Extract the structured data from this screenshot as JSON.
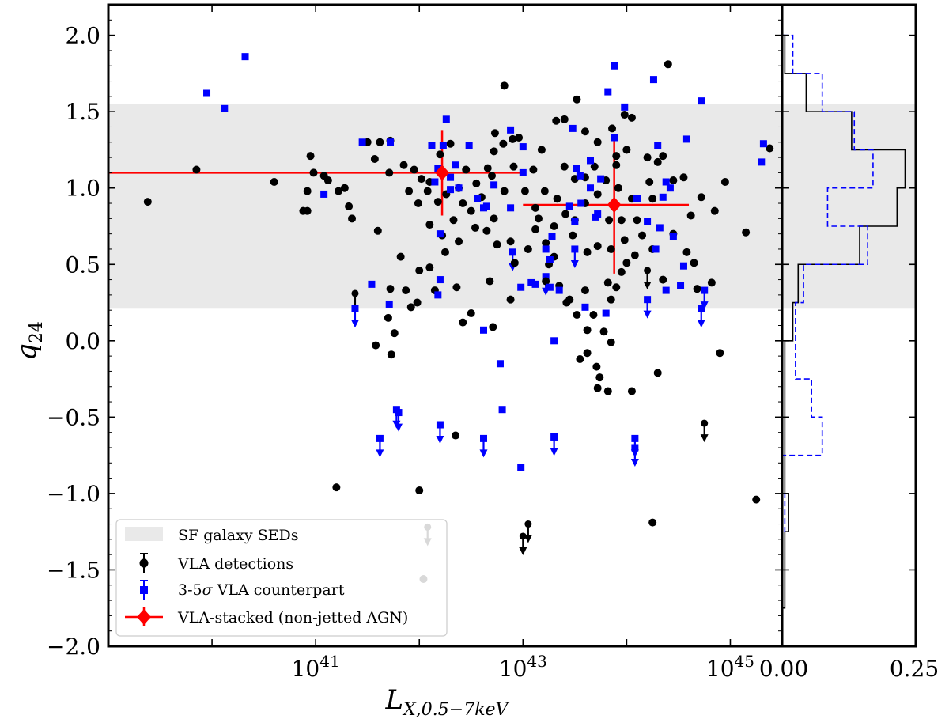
{
  "chart_data": {
    "type": "scatter",
    "xlabel": "L",
    "xlabel_sub": "X,0.5−7keV",
    "ylabel": "q",
    "ylabel_sub": "24",
    "xscale": "log",
    "xlim_log10": [
      39.0,
      45.5
    ],
    "ylim": [
      -2.0,
      2.2
    ],
    "x_tick_labels": [
      {
        "base": "10",
        "exp": "41",
        "x_log10": 41
      },
      {
        "base": "10",
        "exp": "43",
        "x_log10": 43
      },
      {
        "base": "10",
        "exp": "45",
        "x_log10": 45
      }
    ],
    "y_tick_labels": [
      "−2.0",
      "−1.5",
      "−1.0",
      "−0.5",
      "0.0",
      "0.5",
      "1.0",
      "1.5",
      "2.0"
    ],
    "y_tick_values": [
      -2.0,
      -1.5,
      -1.0,
      -0.5,
      0.0,
      0.5,
      1.0,
      1.5,
      2.0
    ],
    "sf_band": {
      "label": "SF galaxy SEDs",
      "y_range": [
        0.21,
        1.55
      ]
    },
    "legend": {
      "position": "lower-left",
      "entries": [
        {
          "label": "SF galaxy SEDs",
          "kind": "band"
        },
        {
          "label": "VLA detections",
          "kind": "dot"
        },
        {
          "label": "3-5σ VLA counterpart",
          "kind": "square"
        },
        {
          "label": "VLA-stacked (non-jetted AGN)",
          "kind": "diamond"
        }
      ]
    },
    "series": [
      {
        "name": "VLA detections",
        "color": "#000000",
        "marker": "circle",
        "points": [
          [
            39.38,
            0.91
          ],
          [
            39.85,
            1.12
          ],
          [
            40.95,
            1.21
          ],
          [
            40.92,
            0.85
          ],
          [
            40.6,
            1.04
          ],
          [
            40.88,
            0.85
          ],
          [
            40.92,
            0.98
          ],
          [
            40.98,
            1.1
          ],
          [
            41.08,
            1.08
          ],
          [
            41.12,
            1.05
          ],
          [
            41.22,
            0.98
          ],
          [
            41.28,
            1.0
          ],
          [
            41.32,
            0.88
          ],
          [
            41.35,
            0.8
          ],
          [
            41.5,
            1.3
          ],
          [
            41.62,
            1.3
          ],
          [
            41.72,
            1.31
          ],
          [
            41.57,
            1.19
          ],
          [
            41.71,
            1.1
          ],
          [
            41.85,
            1.15
          ],
          [
            41.95,
            1.12
          ],
          [
            42.1,
            1.04
          ],
          [
            42.18,
            0.91
          ],
          [
            41.9,
            0.98
          ],
          [
            42.02,
            1.06
          ],
          [
            42.26,
            0.96
          ],
          [
            42.38,
            1.0
          ],
          [
            42.45,
            1.12
          ],
          [
            42.3,
            1.29
          ],
          [
            42.2,
            1.22
          ],
          [
            42.55,
            1.03
          ],
          [
            42.66,
            1.13
          ],
          [
            42.7,
            1.08
          ],
          [
            42.82,
            0.98
          ],
          [
            42.91,
            1.14
          ],
          [
            42.6,
            0.94
          ],
          [
            42.72,
            0.8
          ],
          [
            42.42,
            0.9
          ],
          [
            42.38,
            0.65
          ],
          [
            42.54,
            0.74
          ],
          [
            41.6,
            0.72
          ],
          [
            41.82,
            0.55
          ],
          [
            41.99,
            0.9
          ],
          [
            42.08,
            0.98
          ],
          [
            42.1,
            0.76
          ],
          [
            42.33,
            0.79
          ],
          [
            42.5,
            0.85
          ],
          [
            42.65,
            0.72
          ],
          [
            42.75,
            0.63
          ],
          [
            42.92,
            0.51
          ],
          [
            43.02,
            0.98
          ],
          [
            43.12,
            0.87
          ],
          [
            43.21,
            0.98
          ],
          [
            43.3,
            0.75
          ],
          [
            43.33,
            0.93
          ],
          [
            43.41,
            0.83
          ],
          [
            43.5,
            0.79
          ],
          [
            43.6,
            0.9
          ],
          [
            43.72,
            0.96
          ],
          [
            43.83,
            0.79
          ],
          [
            43.9,
            1.21
          ],
          [
            43.92,
            1.0
          ],
          [
            43.95,
            0.79
          ],
          [
            44.05,
            0.93
          ],
          [
            44.1,
            0.79
          ],
          [
            44.22,
            1.04
          ],
          [
            44.25,
            0.93
          ],
          [
            44.35,
            1.21
          ],
          [
            44.45,
            1.05
          ],
          [
            44.55,
            1.07
          ],
          [
            44.62,
            0.82
          ],
          [
            44.72,
            0.94
          ],
          [
            44.85,
            0.85
          ],
          [
            44.95,
            1.04
          ],
          [
            44.58,
            0.58
          ],
          [
            44.65,
            0.51
          ],
          [
            44.68,
            0.34
          ],
          [
            44.82,
            0.38
          ],
          [
            45.15,
            0.71
          ],
          [
            45.38,
            1.26
          ],
          [
            44.4,
            1.81
          ],
          [
            43.32,
            1.44
          ],
          [
            43.4,
            1.45
          ],
          [
            43.52,
            1.58
          ],
          [
            43.6,
            1.37
          ],
          [
            43.86,
            1.39
          ],
          [
            43.98,
            1.48
          ],
          [
            44.05,
            1.46
          ],
          [
            44.0,
            1.25
          ],
          [
            43.72,
            1.3
          ],
          [
            43.69,
            1.14
          ],
          [
            43.8,
            1.05
          ],
          [
            43.9,
            1.15
          ],
          [
            44.2,
            1.2
          ],
          [
            44.3,
            1.17
          ],
          [
            43.4,
            1.14
          ],
          [
            43.5,
            1.06
          ],
          [
            43.6,
            1.07
          ],
          [
            43.18,
            1.25
          ],
          [
            43.1,
            1.12
          ],
          [
            42.82,
            1.67
          ],
          [
            42.81,
            1.29
          ],
          [
            42.9,
            1.32
          ],
          [
            42.96,
            1.33
          ],
          [
            42.73,
            1.36
          ],
          [
            42.72,
            1.24
          ],
          [
            42.36,
            0.35
          ],
          [
            42.68,
            0.39
          ],
          [
            42.88,
            0.27
          ],
          [
            43.05,
            0.6
          ],
          [
            42.88,
            0.65
          ],
          [
            43.22,
            0.39
          ],
          [
            43.25,
            0.5
          ],
          [
            43.35,
            0.36
          ],
          [
            43.45,
            0.27
          ],
          [
            43.52,
            0.17
          ],
          [
            43.62,
            0.07
          ],
          [
            43.68,
            0.17
          ],
          [
            43.85,
            0.27
          ],
          [
            43.9,
            0.35
          ],
          [
            43.78,
            0.06
          ],
          [
            43.85,
            -0.01
          ],
          [
            43.72,
            -0.31
          ],
          [
            43.74,
            -0.24
          ],
          [
            43.82,
            -0.33
          ],
          [
            43.71,
            -0.17
          ],
          [
            43.55,
            -0.12
          ],
          [
            43.62,
            -0.08
          ],
          [
            44.05,
            -0.33
          ],
          [
            44.3,
            -0.21
          ],
          [
            44.9,
            -0.08
          ],
          [
            43.12,
            0.73
          ],
          [
            43.15,
            0.8
          ],
          [
            43.22,
            0.64
          ],
          [
            43.3,
            0.55
          ],
          [
            43.48,
            0.69
          ],
          [
            43.62,
            0.58
          ],
          [
            43.72,
            0.62
          ],
          [
            43.85,
            0.6
          ],
          [
            43.98,
            0.66
          ],
          [
            44.0,
            0.51
          ],
          [
            44.08,
            0.56
          ],
          [
            44.15,
            0.69
          ],
          [
            44.25,
            0.6
          ],
          [
            44.35,
            0.4
          ],
          [
            44.45,
            0.7
          ],
          [
            43.95,
            0.45
          ],
          [
            43.82,
            0.38
          ],
          [
            43.6,
            0.33
          ],
          [
            43.42,
            0.25
          ],
          [
            42.71,
            0.09
          ],
          [
            41.58,
            -0.03
          ],
          [
            41.76,
            0.05
          ],
          [
            41.73,
            -0.09
          ],
          [
            41.7,
            0.15
          ],
          [
            42.42,
            0.12
          ],
          [
            42.5,
            0.18
          ],
          [
            41.98,
            0.25
          ],
          [
            41.87,
            0.33
          ],
          [
            42.0,
            0.46
          ],
          [
            42.15,
            0.33
          ],
          [
            42.25,
            0.58
          ],
          [
            41.72,
            0.34
          ],
          [
            41.92,
            0.22
          ],
          [
            42.35,
            -0.62
          ],
          [
            42.0,
            -0.98
          ],
          [
            41.2,
            -0.96
          ],
          [
            42.04,
            -1.56
          ],
          [
            44.25,
            -1.19
          ],
          [
            45.25,
            -1.04
          ],
          [
            42.1,
            0.48
          ],
          [
            42.22,
            0.69
          ]
        ]
      },
      {
        "name": "3-5σ VLA counterpart",
        "color": "#0000ff",
        "marker": "square",
        "points": [
          [
            39.95,
            1.62
          ],
          [
            40.12,
            1.52
          ],
          [
            40.32,
            1.86
          ],
          [
            41.08,
            0.96
          ],
          [
            41.45,
            1.3
          ],
          [
            41.72,
            1.3
          ],
          [
            42.12,
            1.28
          ],
          [
            42.35,
            1.15
          ],
          [
            42.3,
            1.07
          ],
          [
            42.23,
            1.28
          ],
          [
            42.26,
            1.45
          ],
          [
            42.48,
            1.28
          ],
          [
            42.18,
            1.13
          ],
          [
            42.3,
            0.99
          ],
          [
            42.38,
            1.0
          ],
          [
            42.15,
            1.04
          ],
          [
            42.72,
            1.02
          ],
          [
            42.62,
            0.87
          ],
          [
            42.65,
            0.88
          ],
          [
            42.88,
            0.87
          ],
          [
            43.0,
            1.1
          ],
          [
            43.0,
            1.27
          ],
          [
            42.88,
            1.38
          ],
          [
            43.22,
            0.6
          ],
          [
            43.28,
            0.68
          ],
          [
            43.45,
            0.88
          ],
          [
            43.5,
            0.78
          ],
          [
            43.56,
            0.9
          ],
          [
            43.65,
            1.0
          ],
          [
            43.7,
            0.81
          ],
          [
            43.88,
            1.33
          ],
          [
            43.65,
            1.18
          ],
          [
            43.75,
            1.06
          ],
          [
            43.52,
            1.13
          ],
          [
            43.55,
            1.08
          ],
          [
            43.82,
            1.63
          ],
          [
            43.88,
            1.8
          ],
          [
            43.98,
            1.53
          ],
          [
            44.3,
            1.28
          ],
          [
            44.58,
            1.32
          ],
          [
            44.72,
            1.57
          ],
          [
            44.38,
            1.04
          ],
          [
            44.42,
            1.0
          ],
          [
            44.35,
            0.94
          ],
          [
            44.1,
            0.93
          ],
          [
            44.2,
            0.78
          ],
          [
            44.28,
            0.6
          ],
          [
            44.32,
            0.74
          ],
          [
            44.45,
            0.68
          ],
          [
            44.55,
            0.49
          ],
          [
            44.52,
            0.36
          ],
          [
            44.38,
            0.33
          ],
          [
            45.32,
            1.29
          ],
          [
            45.3,
            1.17
          ],
          [
            44.26,
            1.71
          ],
          [
            43.72,
            0.83
          ],
          [
            43.48,
            1.39
          ],
          [
            41.71,
            0.24
          ],
          [
            41.54,
            0.37
          ],
          [
            42.2,
            0.4
          ],
          [
            42.18,
            0.3
          ],
          [
            42.98,
            0.35
          ],
          [
            43.08,
            0.38
          ],
          [
            43.35,
            0.33
          ],
          [
            43.26,
            0.35
          ],
          [
            43.6,
            0.22
          ],
          [
            43.8,
            0.18
          ],
          [
            42.62,
            0.07
          ],
          [
            43.3,
            0.0
          ],
          [
            42.78,
            -0.15
          ],
          [
            42.8,
            -0.45
          ],
          [
            42.98,
            -0.83
          ],
          [
            42.56,
            0.93
          ],
          [
            42.2,
            0.7
          ],
          [
            43.26,
            0.53
          ],
          [
            43.12,
            0.37
          ]
        ]
      }
    ],
    "upper_limits_black": [
      [
        41.38,
        0.31
      ],
      [
        42.08,
        -1.22
      ],
      [
        43.05,
        -1.2
      ],
      [
        43.0,
        -1.28
      ],
      [
        44.2,
        0.46
      ],
      [
        44.75,
        -0.54
      ]
    ],
    "upper_limits_blue": [
      [
        41.38,
        0.21
      ],
      [
        41.62,
        -0.64
      ],
      [
        41.78,
        -0.45
      ],
      [
        41.8,
        -0.47
      ],
      [
        42.2,
        -0.55
      ],
      [
        42.62,
        -0.64
      ],
      [
        43.3,
        -0.63
      ],
      [
        44.08,
        -0.64
      ],
      [
        44.08,
        -0.7
      ],
      [
        43.22,
        0.42
      ],
      [
        42.9,
        0.58
      ],
      [
        44.2,
        0.27
      ],
      [
        44.72,
        0.21
      ],
      [
        44.75,
        0.33
      ],
      [
        43.5,
        0.6
      ]
    ],
    "stacked": {
      "name": "VLA-stacked (non-jetted AGN)",
      "color": "#ff0000",
      "points": [
        {
          "x_log10": 42.22,
          "y": 1.1,
          "x_lo": 39.0,
          "x_hi": 43.0,
          "y_err": 0.28
        },
        {
          "x_log10": 43.88,
          "y": 0.89,
          "x_lo": 43.0,
          "x_hi": 44.6,
          "y_err": 0.45
        }
      ]
    },
    "side_histogram": {
      "xlim": [
        0.0,
        0.25
      ],
      "x_tick_labels": [
        "0.00",
        "0.25"
      ],
      "x_tick_values": [
        0.0,
        0.25
      ],
      "bin_edges": [
        -1.75,
        -1.5,
        -1.25,
        -1.0,
        -0.75,
        -0.5,
        -0.25,
        0.0,
        0.25,
        0.5,
        0.75,
        1.0,
        1.25,
        1.5,
        1.75,
        2.0
      ],
      "series": [
        {
          "name": "VLA detections",
          "color": "#000000",
          "style": "solid",
          "values": [
            0.005,
            0.005,
            0.012,
            0.005,
            0.005,
            0.005,
            0.005,
            0.02,
            0.03,
            0.145,
            0.215,
            0.23,
            0.13,
            0.045,
            0.005
          ]
        },
        {
          "name": "3-5σ VLA counterpart",
          "color": "#0000ff",
          "style": "dashed",
          "values": [
            0.0,
            0.0,
            0.005,
            0.0,
            0.075,
            0.055,
            0.025,
            0.025,
            0.04,
            0.16,
            0.085,
            0.17,
            0.135,
            0.075,
            0.02
          ]
        }
      ]
    }
  }
}
